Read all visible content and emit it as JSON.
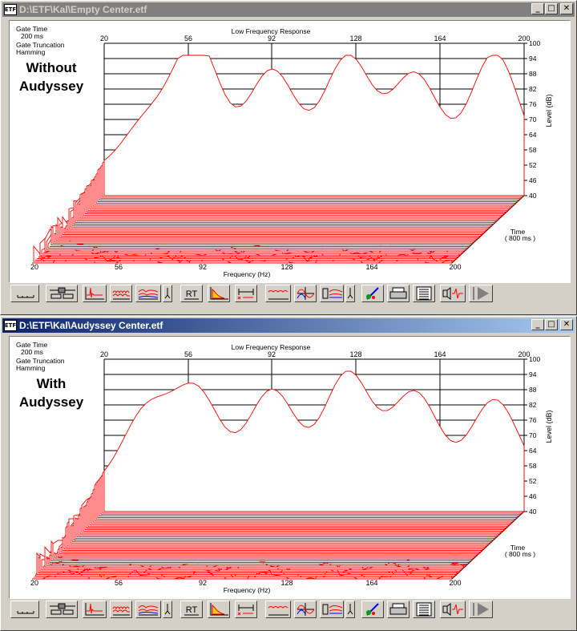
{
  "windows": [
    {
      "title": "D:\\ETF\\Kal\\Empty Center.etf",
      "active": false,
      "gate_time_label": "Gate Time",
      "gate_time_value": "200 ms",
      "gate_trunc_label": "Gate Truncation",
      "gate_trunc_value": "Hamming",
      "overlay_line1": "Without",
      "overlay_line2": "Audyssey",
      "chart_title": "Low Frequency Response",
      "top_axis_ticks": [
        "20",
        "56",
        "92",
        "128",
        "164",
        "200"
      ],
      "bottom_axis_ticks": [
        "20",
        "56",
        "92",
        "128",
        "164",
        "200"
      ],
      "level_ticks": [
        "100",
        "94",
        "88",
        "82",
        "76",
        "70",
        "64",
        "58",
        "52",
        "46",
        "40"
      ],
      "level_label": "Level (dB)",
      "x_label": "Frequency (Hz)",
      "time_label": "Time",
      "time_value": "( 800 ms )"
    },
    {
      "title": "D:\\ETF\\Kal\\Audyssey Center.etf",
      "active": true,
      "gate_time_label": "Gate Time",
      "gate_time_value": "200 ms",
      "gate_trunc_label": "Gate Truncation",
      "gate_trunc_value": "Hamming",
      "overlay_line1": "With",
      "overlay_line2": "Audyssey",
      "chart_title": "Low Frequency Response",
      "top_axis_ticks": [
        "20",
        "56",
        "92",
        "128",
        "164",
        "200"
      ],
      "bottom_axis_ticks": [
        "20",
        "56",
        "92",
        "128",
        "164",
        "200"
      ],
      "level_ticks": [
        "100",
        "94",
        "88",
        "82",
        "76",
        "70",
        "64",
        "58",
        "52",
        "46",
        "40"
      ],
      "level_label": "Level (dB)",
      "x_label": "Frequency (Hz)",
      "time_label": "Time",
      "time_value": "( 800 ms )"
    }
  ],
  "toolbar": {
    "rt_label": "RT",
    "icons": [
      "axis-select-icon",
      "slider-icon",
      "impulse-icon",
      "waterfall-icon",
      "multi-waterfall-icon",
      "rt-icon",
      "decay-icon",
      "gate-icon",
      "freq-response-icon",
      "phase-icon",
      "speaker-compare-icon",
      "color-icon",
      "print-icon",
      "notes-icon",
      "speaker-pulse-icon",
      "play-icon"
    ]
  },
  "colors": {
    "waterfall": "#ff0000",
    "titlebar_active": "#0a246a",
    "titlebar_inactive": "#808080"
  }
}
